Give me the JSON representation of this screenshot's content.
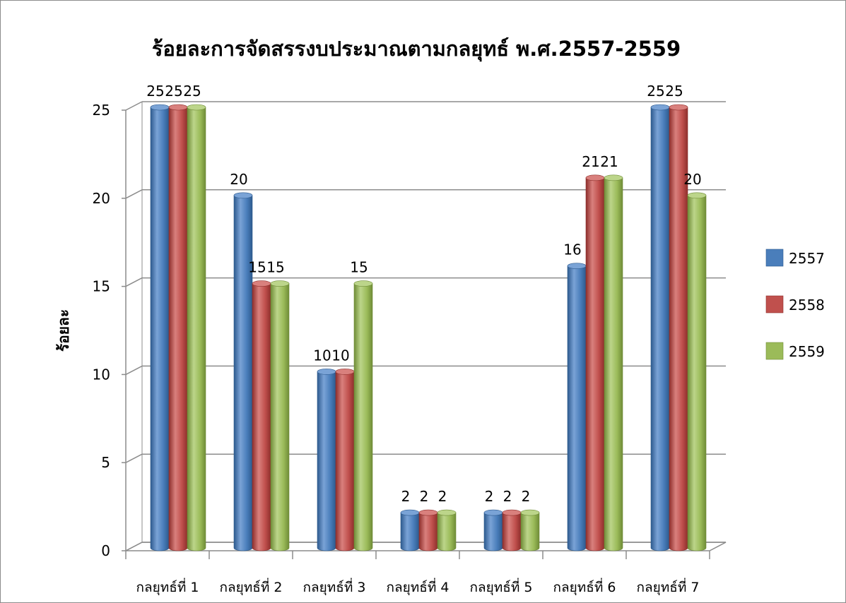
{
  "colors": {
    "series": [
      "#4a7ebb",
      "#c0504d",
      "#9bbb59"
    ],
    "series_dark": [
      "#2d5a8e",
      "#8e2f2c",
      "#6f8c37"
    ],
    "series_light": [
      "#7aa3d6",
      "#d9807d",
      "#bcd58a"
    ],
    "grid": "#8c8c8c",
    "wall": "#ffffff"
  },
  "chart_data": {
    "type": "bar",
    "title": "ร้อยละการจัดสรรงบประมาณตามกลยุทธ์ พ.ศ.2557-2559",
    "xlabel": "",
    "ylabel": "ร้อยละ",
    "ylim": [
      0,
      25
    ],
    "yticks": [
      "0",
      "5",
      "10",
      "15",
      "20",
      "25"
    ],
    "grid": true,
    "legend_position": "right",
    "categories": [
      "กลยุทธ์ที่ 1",
      "กลยุทธ์ที่ 2",
      "กลยุทธ์ที่ 3",
      "กลยุทธ์ที่ 4",
      "กลยุทธ์ที่ 5",
      "กลยุทธ์ที่ 6",
      "กลยุทธ์ที่ 7"
    ],
    "series": [
      {
        "name": "2557",
        "values": [
          25,
          20,
          10,
          2,
          2,
          16,
          25
        ]
      },
      {
        "name": "2558",
        "values": [
          25,
          15,
          10,
          2,
          2,
          21,
          25
        ]
      },
      {
        "name": "2559",
        "values": [
          25,
          15,
          15,
          2,
          2,
          21,
          20
        ]
      }
    ]
  }
}
